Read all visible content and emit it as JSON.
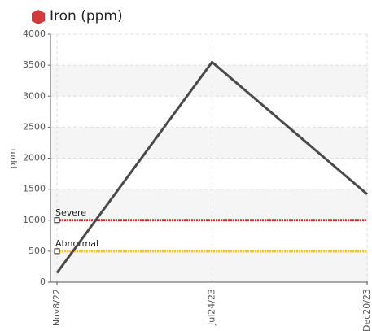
{
  "chart_data": {
    "type": "line",
    "title": "Iron (ppm)",
    "y_label": "ppm",
    "categories": [
      "Nov8/22",
      "Jul24/23",
      "Dec20/23"
    ],
    "series": [
      {
        "name": "Iron",
        "color": "#4a4a4a",
        "values": [
          150,
          3550,
          1420
        ]
      }
    ],
    "thresholds": [
      {
        "name": "Severe",
        "value": 1000,
        "color": "#e82020"
      },
      {
        "name": "Abnormal",
        "value": 500,
        "color": "#f5c518"
      }
    ],
    "ylim": [
      0,
      4000
    ],
    "yticks": [
      0,
      500,
      1000,
      1500,
      2000,
      2500,
      3000,
      3500,
      4000
    ],
    "grid": true
  }
}
